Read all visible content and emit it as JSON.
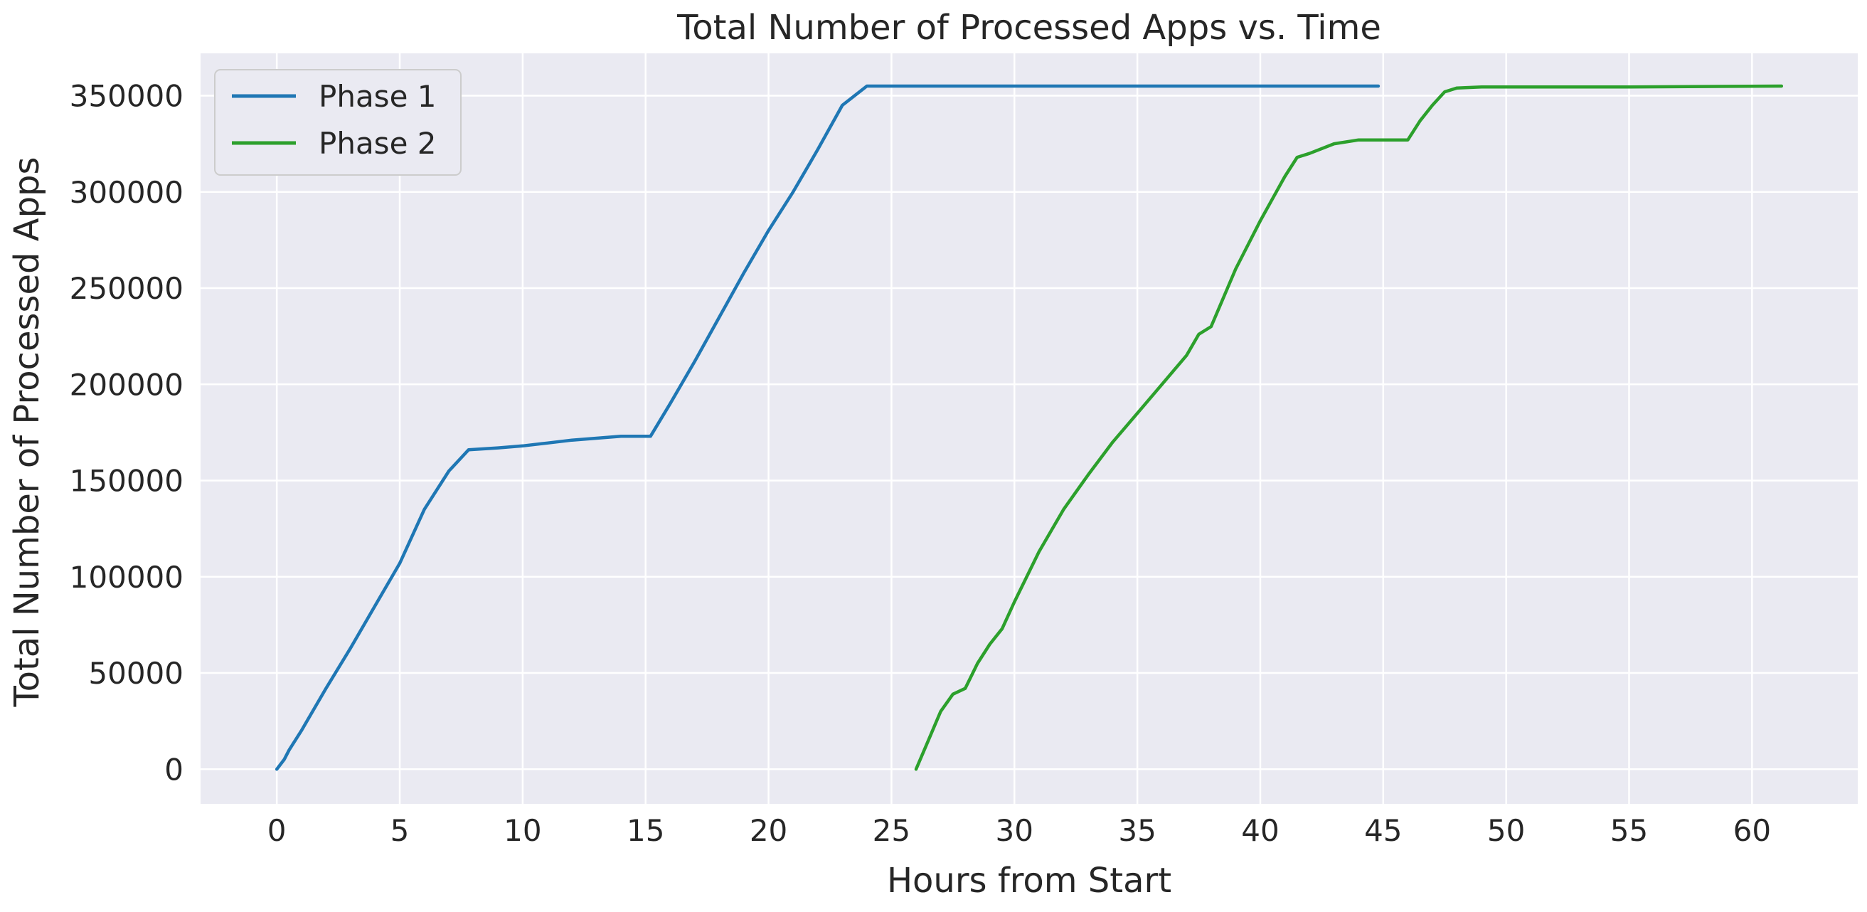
{
  "chart_data": {
    "type": "line",
    "title": "Total Number of Processed Apps vs. Time",
    "xlabel": "Hours from Start",
    "ylabel": "Total Number of Processed Apps",
    "xlim": [
      -3.1,
      64.3
    ],
    "ylim": [
      -18000,
      372000
    ],
    "xticks": [
      0,
      5,
      10,
      15,
      20,
      25,
      30,
      35,
      40,
      45,
      50,
      55,
      60
    ],
    "yticks": [
      0,
      50000,
      100000,
      150000,
      200000,
      250000,
      300000,
      350000
    ],
    "grid": true,
    "legend_position": "top-left",
    "background_color": "#eaeaf2",
    "series": [
      {
        "name": "Phase 1",
        "color": "#1f77b4",
        "x": [
          0,
          0.3,
          0.5,
          1,
          2,
          3,
          4,
          5,
          6,
          7,
          7.8,
          9,
          10,
          11,
          12,
          13,
          14,
          15.2,
          16,
          17,
          18,
          19,
          20,
          21,
          22,
          23,
          24,
          24.7,
          25,
          30,
          35,
          40,
          44.8
        ],
        "y": [
          0,
          5000,
          10000,
          20000,
          42000,
          63000,
          85000,
          107000,
          135000,
          155000,
          166000,
          167000,
          168000,
          169500,
          171000,
          172000,
          173000,
          173000,
          190000,
          212000,
          235000,
          258000,
          280000,
          300000,
          322000,
          345000,
          355000,
          355000,
          355000,
          355000,
          355000,
          355000,
          355000
        ]
      },
      {
        "name": "Phase 2",
        "color": "#2ca02c",
        "x": [
          26,
          26.5,
          27,
          27.5,
          28,
          28.5,
          29,
          29.5,
          30,
          31,
          32,
          33,
          34,
          35,
          36,
          37,
          37.5,
          38,
          39,
          40,
          41,
          41.5,
          42,
          43,
          44,
          45,
          46,
          46.5,
          47,
          47.5,
          48,
          49,
          50,
          55,
          61.2
        ],
        "y": [
          0,
          15000,
          30000,
          39000,
          42000,
          55000,
          65000,
          73000,
          87000,
          113000,
          135000,
          153000,
          170000,
          185000,
          200000,
          215000,
          226000,
          230000,
          260000,
          285000,
          308000,
          318000,
          320000,
          325000,
          327000,
          327000,
          327000,
          337000,
          345000,
          352000,
          354000,
          354500,
          354500,
          354500,
          355000
        ]
      }
    ]
  }
}
